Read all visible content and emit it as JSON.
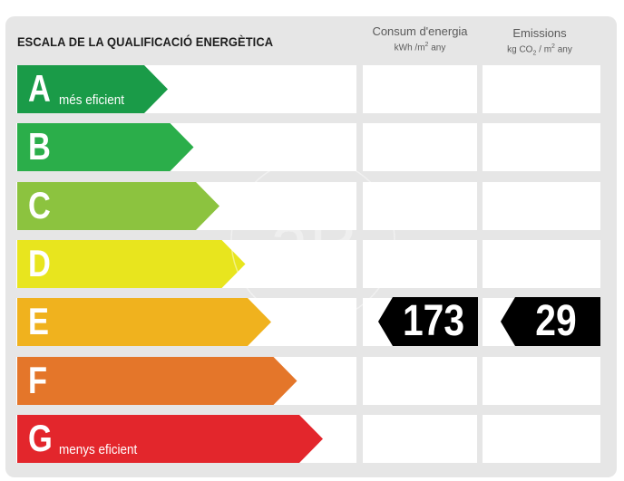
{
  "title": "ESCALA DE LA QUALIFICACIÓ ENERGÈTICA",
  "columns": {
    "consumption": {
      "label": "Consum d'energia",
      "unit_prefix": "kWh /m",
      "unit_sup": "2",
      "unit_suffix": "  any"
    },
    "emissions": {
      "label": "Emissions",
      "unit_prefix": "kg CO",
      "unit_sub": "2",
      "unit_mid": "  / m",
      "unit_sup": "2",
      "unit_suffix": "  any"
    }
  },
  "ratings": [
    {
      "letter": "A",
      "description": "més eficient",
      "color": "#1a9b48"
    },
    {
      "letter": "B",
      "description": "",
      "color": "#2bae4a"
    },
    {
      "letter": "C",
      "description": "",
      "color": "#8cc33f"
    },
    {
      "letter": "D",
      "description": "",
      "color": "#e8e51e"
    },
    {
      "letter": "E",
      "description": "",
      "color": "#f0b21e"
    },
    {
      "letter": "F",
      "description": "",
      "color": "#e4762a"
    },
    {
      "letter": "G",
      "description": "menys eficient",
      "color": "#e3262c"
    }
  ],
  "current": {
    "rating": "E",
    "consumption_value": "173",
    "emissions_value": "29"
  },
  "watermark": {
    "text": "aP"
  }
}
